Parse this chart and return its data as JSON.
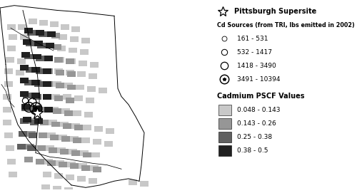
{
  "legend_title_supersite": "Pittsburgh Supersite",
  "legend_title_cd_sources": "Cd Sources (from TRI, lbs emitted in 2002)",
  "cd_source_labels": [
    "161 - 531",
    "532 - 1417",
    "1418 - 3490",
    "3491 - 10394"
  ],
  "pscf_title": "Cadmium PSCF Values",
  "pscf_labels": [
    "0.048 - 0.143",
    "0.143 - 0.26",
    "0.25 - 0.38",
    "0.38 - 0.5"
  ],
  "pscf_colors": [
    "#c8c8c8",
    "#969696",
    "#606060",
    "#202020"
  ],
  "background_color": "#ffffff",
  "figsize": [
    5.0,
    2.71
  ],
  "dpi": 100,
  "map_xlim": [
    -80.5,
    -77.5
  ],
  "map_ylim": [
    39.5,
    41.8
  ],
  "star_lon": -79.98,
  "star_lat": 40.44,
  "cd_sources": [
    {
      "lon": -80.15,
      "lat": 40.6,
      "size_idx": 0
    },
    {
      "lon": -80.05,
      "lat": 40.58,
      "size_idx": 1
    },
    {
      "lon": -80.1,
      "lat": 40.52,
      "size_idx": 2
    },
    {
      "lon": -80.0,
      "lat": 40.5,
      "size_idx": 3
    }
  ],
  "grid_cells": [
    [
      0,
      -80.4,
      41.55,
      0.12,
      0.07
    ],
    [
      0,
      -80.25,
      41.55,
      0.12,
      0.07
    ],
    [
      0,
      -80.1,
      41.62,
      0.12,
      0.07
    ],
    [
      0,
      -79.95,
      41.6,
      0.12,
      0.07
    ],
    [
      0,
      -79.8,
      41.58,
      0.12,
      0.07
    ],
    [
      0,
      -79.65,
      41.55,
      0.12,
      0.07
    ],
    [
      0,
      -79.5,
      41.52,
      0.12,
      0.07
    ],
    [
      0,
      -80.38,
      41.42,
      0.12,
      0.07
    ],
    [
      0,
      -80.22,
      41.42,
      0.12,
      0.07
    ],
    [
      0,
      -79.68,
      41.42,
      0.12,
      0.07
    ],
    [
      0,
      -79.52,
      41.4,
      0.12,
      0.07
    ],
    [
      0,
      -79.36,
      41.38,
      0.12,
      0.07
    ],
    [
      0,
      -80.4,
      41.28,
      0.12,
      0.07
    ],
    [
      0,
      -79.7,
      41.28,
      0.12,
      0.07
    ],
    [
      0,
      -79.54,
      41.26,
      0.12,
      0.07
    ],
    [
      0,
      -79.38,
      41.24,
      0.12,
      0.07
    ],
    [
      0,
      -80.42,
      41.14,
      0.12,
      0.07
    ],
    [
      0,
      -80.26,
      41.12,
      0.12,
      0.07
    ],
    [
      0,
      -79.72,
      41.14,
      0.12,
      0.07
    ],
    [
      0,
      -79.56,
      41.12,
      0.12,
      0.07
    ],
    [
      0,
      -79.4,
      41.1,
      0.12,
      0.07
    ],
    [
      0,
      -79.24,
      41.08,
      0.12,
      0.07
    ],
    [
      0,
      -80.44,
      41.0,
      0.12,
      0.07
    ],
    [
      0,
      -80.28,
      40.98,
      0.12,
      0.07
    ],
    [
      0,
      -79.74,
      41.0,
      0.12,
      0.07
    ],
    [
      0,
      -79.58,
      40.98,
      0.12,
      0.07
    ],
    [
      0,
      -79.42,
      40.96,
      0.12,
      0.07
    ],
    [
      0,
      -79.26,
      40.94,
      0.12,
      0.07
    ],
    [
      0,
      -80.44,
      40.84,
      0.12,
      0.07
    ],
    [
      0,
      -79.76,
      40.84,
      0.12,
      0.07
    ],
    [
      0,
      -79.6,
      40.82,
      0.12,
      0.07
    ],
    [
      0,
      -79.44,
      40.8,
      0.12,
      0.07
    ],
    [
      0,
      -79.28,
      40.78,
      0.12,
      0.07
    ],
    [
      0,
      -79.12,
      40.76,
      0.12,
      0.07
    ],
    [
      0,
      -80.46,
      40.68,
      0.12,
      0.07
    ],
    [
      0,
      -79.78,
      40.68,
      0.12,
      0.07
    ],
    [
      0,
      -79.62,
      40.68,
      0.12,
      0.07
    ],
    [
      0,
      -79.46,
      40.66,
      0.12,
      0.07
    ],
    [
      0,
      -79.3,
      40.64,
      0.12,
      0.07
    ],
    [
      0,
      -80.46,
      40.52,
      0.12,
      0.07
    ],
    [
      0,
      -79.8,
      40.52,
      0.12,
      0.07
    ],
    [
      0,
      -79.64,
      40.5,
      0.12,
      0.07
    ],
    [
      0,
      -79.48,
      40.48,
      0.12,
      0.07
    ],
    [
      0,
      -79.32,
      40.46,
      0.12,
      0.07
    ],
    [
      0,
      -80.46,
      40.36,
      0.12,
      0.07
    ],
    [
      0,
      -79.82,
      40.36,
      0.12,
      0.07
    ],
    [
      0,
      -79.66,
      40.34,
      0.12,
      0.07
    ],
    [
      0,
      -79.5,
      40.32,
      0.12,
      0.07
    ],
    [
      0,
      -79.34,
      40.3,
      0.12,
      0.07
    ],
    [
      0,
      -79.18,
      40.28,
      0.12,
      0.07
    ],
    [
      0,
      -79.02,
      40.26,
      0.12,
      0.07
    ],
    [
      0,
      -80.44,
      40.2,
      0.12,
      0.07
    ],
    [
      0,
      -79.84,
      40.2,
      0.12,
      0.07
    ],
    [
      0,
      -79.68,
      40.18,
      0.12,
      0.07
    ],
    [
      0,
      -79.52,
      40.16,
      0.12,
      0.07
    ],
    [
      0,
      -79.36,
      40.14,
      0.12,
      0.07
    ],
    [
      0,
      -79.2,
      40.12,
      0.12,
      0.07
    ],
    [
      0,
      -79.04,
      40.1,
      0.12,
      0.07
    ],
    [
      0,
      -80.42,
      40.04,
      0.12,
      0.07
    ],
    [
      0,
      -79.86,
      40.04,
      0.12,
      0.07
    ],
    [
      0,
      -79.7,
      40.02,
      0.12,
      0.07
    ],
    [
      0,
      -79.54,
      40.0,
      0.12,
      0.07
    ],
    [
      0,
      -79.38,
      39.98,
      0.12,
      0.07
    ],
    [
      0,
      -79.22,
      39.96,
      0.12,
      0.07
    ],
    [
      0,
      -80.4,
      39.88,
      0.12,
      0.07
    ],
    [
      0,
      -79.88,
      39.88,
      0.12,
      0.07
    ],
    [
      0,
      -79.72,
      39.86,
      0.12,
      0.07
    ],
    [
      0,
      -79.56,
      39.84,
      0.12,
      0.07
    ],
    [
      0,
      -79.4,
      39.82,
      0.12,
      0.07
    ],
    [
      0,
      -79.24,
      39.8,
      0.12,
      0.07
    ],
    [
      0,
      -80.38,
      39.72,
      0.12,
      0.07
    ],
    [
      0,
      -79.9,
      39.72,
      0.12,
      0.07
    ],
    [
      0,
      -79.74,
      39.7,
      0.12,
      0.07
    ],
    [
      0,
      -79.58,
      39.68,
      0.12,
      0.07
    ],
    [
      0,
      -79.42,
      39.66,
      0.12,
      0.07
    ],
    [
      0,
      -79.26,
      39.64,
      0.12,
      0.07
    ],
    [
      0,
      -78.7,
      39.62,
      0.12,
      0.07
    ],
    [
      0,
      -78.54,
      39.6,
      0.12,
      0.07
    ],
    [
      0,
      -79.92,
      39.56,
      0.12,
      0.07
    ],
    [
      0,
      -79.76,
      39.54,
      0.12,
      0.07
    ],
    [
      0,
      -79.6,
      39.52,
      0.12,
      0.07
    ],
    [
      0,
      -79.44,
      39.5,
      0.12,
      0.07
    ],
    [
      1,
      -80.1,
      41.48,
      0.12,
      0.07
    ],
    [
      1,
      -79.94,
      41.46,
      0.12,
      0.07
    ],
    [
      1,
      -79.78,
      41.44,
      0.12,
      0.07
    ],
    [
      1,
      -80.08,
      41.34,
      0.12,
      0.07
    ],
    [
      1,
      -79.92,
      41.32,
      0.12,
      0.07
    ],
    [
      1,
      -79.76,
      41.3,
      0.12,
      0.07
    ],
    [
      1,
      -80.06,
      41.18,
      0.12,
      0.07
    ],
    [
      1,
      -79.9,
      41.16,
      0.12,
      0.07
    ],
    [
      1,
      -79.74,
      41.14,
      0.12,
      0.07
    ],
    [
      1,
      -79.58,
      41.12,
      0.12,
      0.07
    ],
    [
      1,
      -80.04,
      41.02,
      0.12,
      0.07
    ],
    [
      1,
      -79.88,
      41.0,
      0.12,
      0.07
    ],
    [
      1,
      -79.72,
      40.98,
      0.12,
      0.07
    ],
    [
      1,
      -79.56,
      40.96,
      0.12,
      0.07
    ],
    [
      1,
      -80.04,
      40.86,
      0.12,
      0.07
    ],
    [
      1,
      -79.88,
      40.84,
      0.12,
      0.07
    ],
    [
      1,
      -79.72,
      40.82,
      0.12,
      0.07
    ],
    [
      1,
      -79.56,
      40.8,
      0.12,
      0.07
    ],
    [
      1,
      -80.06,
      40.7,
      0.12,
      0.07
    ],
    [
      1,
      -79.9,
      40.68,
      0.12,
      0.07
    ],
    [
      1,
      -79.74,
      40.66,
      0.12,
      0.07
    ],
    [
      1,
      -79.58,
      40.64,
      0.12,
      0.07
    ],
    [
      1,
      -80.08,
      40.54,
      0.12,
      0.07
    ],
    [
      1,
      -79.92,
      40.52,
      0.12,
      0.07
    ],
    [
      1,
      -79.76,
      40.5,
      0.12,
      0.07
    ],
    [
      1,
      -79.6,
      40.48,
      0.12,
      0.07
    ],
    [
      1,
      -80.1,
      40.38,
      0.12,
      0.07
    ],
    [
      1,
      -79.94,
      40.36,
      0.12,
      0.07
    ],
    [
      1,
      -79.78,
      40.34,
      0.12,
      0.07
    ],
    [
      1,
      -79.62,
      40.32,
      0.12,
      0.07
    ],
    [
      1,
      -79.46,
      40.3,
      0.12,
      0.07
    ],
    [
      1,
      -80.12,
      40.22,
      0.12,
      0.07
    ],
    [
      1,
      -79.96,
      40.2,
      0.12,
      0.07
    ],
    [
      1,
      -79.8,
      40.18,
      0.12,
      0.07
    ],
    [
      1,
      -79.64,
      40.16,
      0.12,
      0.07
    ],
    [
      1,
      -79.48,
      40.14,
      0.12,
      0.07
    ],
    [
      1,
      -80.14,
      40.06,
      0.12,
      0.07
    ],
    [
      1,
      -79.98,
      40.04,
      0.12,
      0.07
    ],
    [
      1,
      -79.82,
      40.02,
      0.12,
      0.07
    ],
    [
      1,
      -79.66,
      40.0,
      0.12,
      0.07
    ],
    [
      1,
      -79.5,
      39.98,
      0.12,
      0.07
    ],
    [
      1,
      -79.34,
      39.96,
      0.12,
      0.07
    ],
    [
      1,
      -80.16,
      39.9,
      0.12,
      0.07
    ],
    [
      1,
      -80.0,
      39.88,
      0.12,
      0.07
    ],
    [
      1,
      -79.84,
      39.86,
      0.12,
      0.07
    ],
    [
      1,
      -79.68,
      39.84,
      0.12,
      0.07
    ],
    [
      1,
      -79.52,
      39.82,
      0.12,
      0.07
    ],
    [
      1,
      -79.36,
      39.8,
      0.12,
      0.07
    ],
    [
      1,
      -79.2,
      39.78,
      0.12,
      0.07
    ],
    [
      2,
      -80.12,
      41.48,
      0.12,
      0.07
    ],
    [
      2,
      -79.96,
      41.46,
      0.12,
      0.07
    ],
    [
      2,
      -80.14,
      41.34,
      0.12,
      0.07
    ],
    [
      2,
      -79.98,
      41.32,
      0.12,
      0.07
    ],
    [
      2,
      -80.16,
      41.18,
      0.12,
      0.07
    ],
    [
      2,
      -80.0,
      41.16,
      0.12,
      0.07
    ],
    [
      2,
      -80.14,
      41.02,
      0.12,
      0.07
    ],
    [
      2,
      -80.0,
      41.0,
      0.12,
      0.07
    ],
    [
      2,
      -80.16,
      40.86,
      0.12,
      0.07
    ],
    [
      2,
      -80.02,
      40.84,
      0.12,
      0.07
    ],
    [
      2,
      -80.18,
      40.7,
      0.12,
      0.07
    ],
    [
      2,
      -80.04,
      40.68,
      0.12,
      0.07
    ],
    [
      2,
      -80.2,
      40.54,
      0.12,
      0.07
    ],
    [
      2,
      -80.06,
      40.52,
      0.12,
      0.07
    ],
    [
      2,
      -80.22,
      40.38,
      0.12,
      0.07
    ],
    [
      2,
      -80.08,
      40.36,
      0.12,
      0.07
    ],
    [
      2,
      -80.24,
      40.22,
      0.12,
      0.07
    ],
    [
      2,
      -80.1,
      40.2,
      0.12,
      0.07
    ],
    [
      2,
      -80.26,
      40.06,
      0.12,
      0.07
    ],
    [
      2,
      -80.12,
      40.04,
      0.12,
      0.07
    ],
    [
      3,
      -80.16,
      41.5,
      0.12,
      0.07
    ],
    [
      3,
      -80.0,
      41.48,
      0.12,
      0.07
    ],
    [
      3,
      -79.84,
      41.46,
      0.12,
      0.07
    ],
    [
      3,
      -80.18,
      41.36,
      0.12,
      0.07
    ],
    [
      3,
      -80.02,
      41.34,
      0.12,
      0.07
    ],
    [
      3,
      -79.86,
      41.32,
      0.12,
      0.07
    ],
    [
      3,
      -80.2,
      41.2,
      0.12,
      0.07
    ],
    [
      3,
      -80.04,
      41.18,
      0.12,
      0.07
    ],
    [
      3,
      -79.88,
      41.16,
      0.12,
      0.07
    ],
    [
      3,
      -80.22,
      41.04,
      0.12,
      0.07
    ],
    [
      3,
      -80.06,
      41.02,
      0.12,
      0.07
    ],
    [
      3,
      -79.9,
      41.0,
      0.12,
      0.07
    ],
    [
      3,
      -80.22,
      40.88,
      0.12,
      0.07
    ],
    [
      3,
      -80.06,
      40.86,
      0.12,
      0.07
    ],
    [
      3,
      -79.9,
      40.84,
      0.12,
      0.07
    ],
    [
      3,
      -80.22,
      40.72,
      0.12,
      0.07
    ],
    [
      3,
      -80.06,
      40.7,
      0.12,
      0.07
    ],
    [
      3,
      -79.9,
      40.68,
      0.12,
      0.07
    ],
    [
      3,
      -80.2,
      40.56,
      0.12,
      0.07
    ],
    [
      3,
      -80.04,
      40.54,
      0.12,
      0.07
    ],
    [
      3,
      -79.88,
      40.52,
      0.12,
      0.07
    ],
    [
      3,
      -80.18,
      40.4,
      0.12,
      0.07
    ],
    [
      3,
      -80.02,
      40.38,
      0.12,
      0.07
    ]
  ]
}
